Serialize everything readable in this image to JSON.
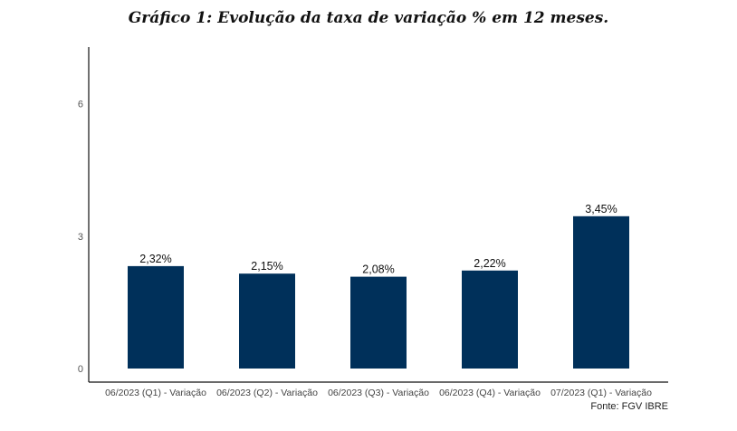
{
  "chart_data": {
    "type": "bar",
    "title": "Gráfico 1: Evolução da taxa de variação % em 12 meses.",
    "categories": [
      "06/2023 (Q1) - Variação",
      "06/2023 (Q2) - Variação",
      "06/2023 (Q3) - Variação",
      "06/2023 (Q4) - Variação",
      "07/2023 (Q1) - Variação"
    ],
    "values": [
      2.32,
      2.15,
      2.08,
      2.22,
      3.45
    ],
    "data_labels": [
      "2,32%",
      "2,15%",
      "2,08%",
      "2,22%",
      "3,45%"
    ],
    "yticks": [
      0,
      3,
      6
    ],
    "ylim": [
      0,
      7.2
    ],
    "grid": false,
    "bar_color": "#00305a",
    "source": "Fonte: FGV IBRE"
  }
}
